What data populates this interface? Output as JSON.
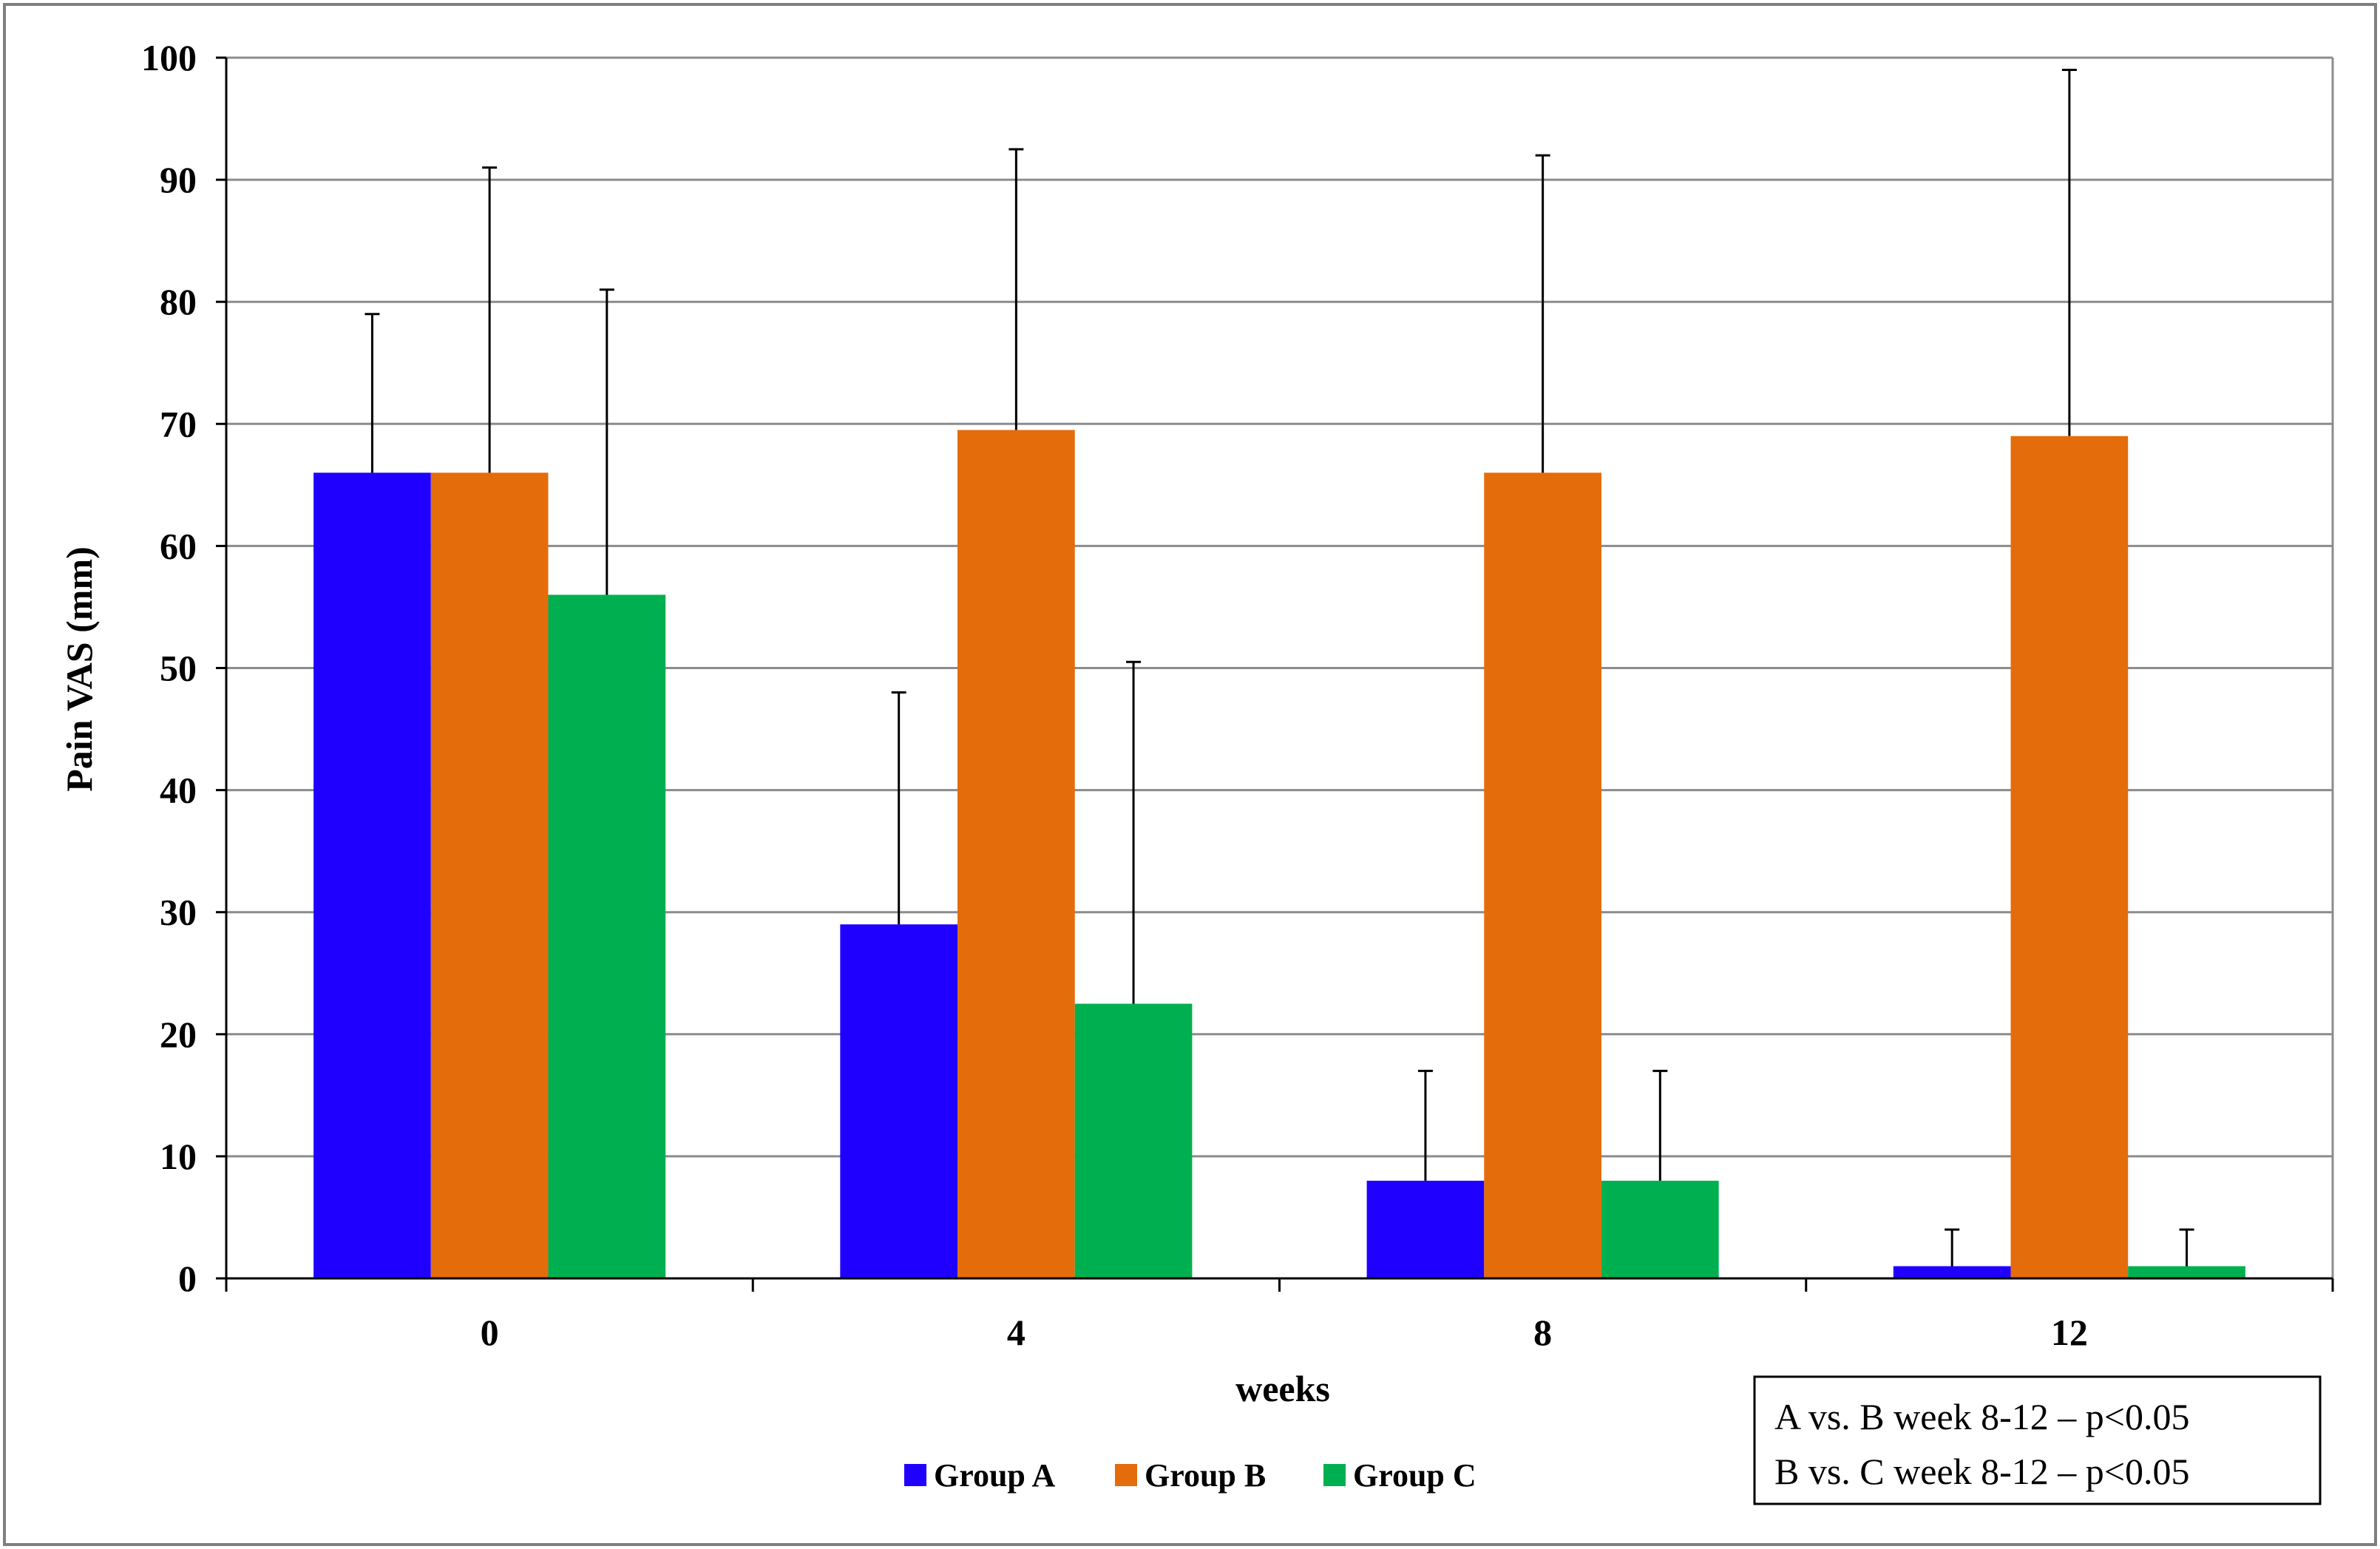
{
  "chart_data": {
    "type": "bar",
    "xlabel": "weeks",
    "ylabel": "Pain VAS (mm)",
    "ylim": [
      0,
      100
    ],
    "yticks": [
      0,
      10,
      20,
      30,
      40,
      50,
      60,
      70,
      80,
      90,
      100
    ],
    "categories": [
      "0",
      "4",
      "8",
      "12"
    ],
    "grid": true,
    "legend_position": "bottom",
    "series": [
      {
        "name": "Group A",
        "color": "#1f00ff",
        "values": [
          66,
          29,
          8,
          1
        ],
        "error_upper": [
          79,
          48,
          17,
          4
        ]
      },
      {
        "name": "Group B",
        "color": "#e46c0a",
        "values": [
          66,
          69.5,
          66,
          69
        ],
        "error_upper": [
          91,
          92.5,
          92,
          99
        ]
      },
      {
        "name": "Group C",
        "color": "#00b050",
        "values": [
          56,
          22.5,
          8,
          1
        ],
        "error_upper": [
          81,
          50.5,
          17,
          4
        ]
      }
    ],
    "annotation": {
      "lines": [
        "A vs. B week 8-12 – p<0.05",
        "B vs. C week 8-12 – p<0.05"
      ]
    }
  }
}
